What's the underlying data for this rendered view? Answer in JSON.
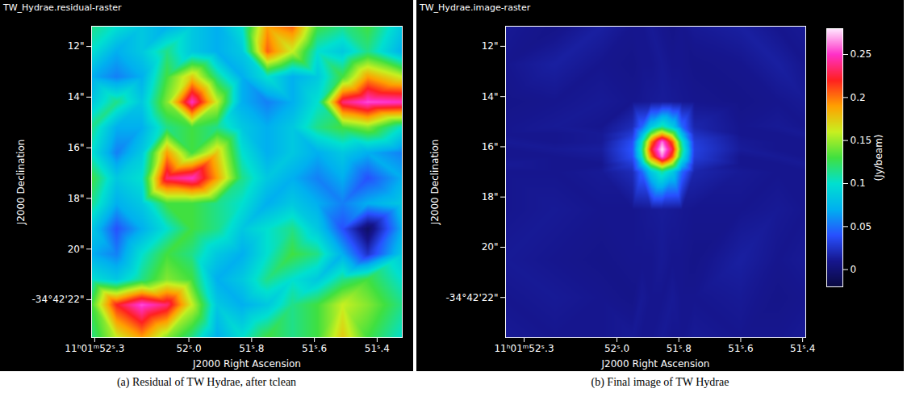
{
  "chart_data": [
    {
      "type": "heatmap",
      "title": "TW_Hydrae.residual-raster",
      "caption": "(a) Residual of TW Hydrae, after tclean",
      "x_label": "J2000 Right Ascension",
      "y_label": "J2000 Declination",
      "xlim": [
        52.31,
        51.32
      ],
      "ylim": [
        11.2,
        23.5
      ],
      "xticks": [
        {
          "value": 52.3,
          "label": "11ʰ01ᵐ52ˢ.3"
        },
        {
          "value": 52.0,
          "label": "52ˢ.0"
        },
        {
          "value": 51.8,
          "label": "51ˢ.8"
        },
        {
          "value": 51.6,
          "label": "51ˢ.6"
        },
        {
          "value": 51.4,
          "label": "51ˢ.4"
        }
      ],
      "yticks": [
        {
          "value": 12,
          "label": "12\""
        },
        {
          "value": 14,
          "label": "14\""
        },
        {
          "value": 16,
          "label": "16\""
        },
        {
          "value": 18,
          "label": "18\""
        },
        {
          "value": 20,
          "label": "20\""
        },
        {
          "value": 22,
          "label": "-34°42'22\""
        }
      ],
      "color_range": [
        0,
        1
      ],
      "cells": {
        "x": [
          52.31,
          52.23,
          52.15,
          52.07,
          51.99,
          51.91,
          51.83,
          51.75,
          51.67,
          51.59,
          51.51,
          51.43,
          51.32
        ],
        "y": [
          11.2,
          12.2,
          13.2,
          14.2,
          15.2,
          16.2,
          17.2,
          18.2,
          19.2,
          20.2,
          21.2,
          22.2,
          23.5
        ],
        "values": [
          [
            0.45,
            0.4,
            0.35,
            0.3,
            0.35,
            0.3,
            0.4,
            0.7,
            0.75,
            0.5,
            0.45,
            0.5,
            0.35
          ],
          [
            0.4,
            0.3,
            0.35,
            0.45,
            0.35,
            0.3,
            0.35,
            0.75,
            0.6,
            0.4,
            0.35,
            0.45,
            0.3
          ],
          [
            0.3,
            0.25,
            0.3,
            0.5,
            0.65,
            0.45,
            0.3,
            0.4,
            0.3,
            0.35,
            0.5,
            0.7,
            0.6
          ],
          [
            0.35,
            0.45,
            0.35,
            0.55,
            0.9,
            0.6,
            0.3,
            0.25,
            0.3,
            0.4,
            0.85,
            0.92,
            0.9
          ],
          [
            0.45,
            0.3,
            0.3,
            0.45,
            0.5,
            0.45,
            0.35,
            0.3,
            0.35,
            0.45,
            0.5,
            0.55,
            0.4
          ],
          [
            0.4,
            0.25,
            0.35,
            0.7,
            0.5,
            0.65,
            0.4,
            0.3,
            0.35,
            0.3,
            0.35,
            0.3,
            0.25
          ],
          [
            0.5,
            0.35,
            0.4,
            0.85,
            0.9,
            0.7,
            0.45,
            0.35,
            0.3,
            0.25,
            0.3,
            0.2,
            0.3
          ],
          [
            0.45,
            0.3,
            0.35,
            0.5,
            0.5,
            0.45,
            0.4,
            0.3,
            0.35,
            0.3,
            0.25,
            0.3,
            0.35
          ],
          [
            0.35,
            0.2,
            0.3,
            0.4,
            0.5,
            0.45,
            0.35,
            0.4,
            0.45,
            0.35,
            0.2,
            0.05,
            0.3
          ],
          [
            0.3,
            0.25,
            0.4,
            0.5,
            0.45,
            0.35,
            0.3,
            0.4,
            0.5,
            0.45,
            0.3,
            0.15,
            0.35
          ],
          [
            0.4,
            0.35,
            0.45,
            0.55,
            0.5,
            0.3,
            0.35,
            0.45,
            0.4,
            0.35,
            0.45,
            0.5,
            0.4
          ],
          [
            0.5,
            0.8,
            0.92,
            0.85,
            0.6,
            0.35,
            0.3,
            0.35,
            0.45,
            0.5,
            0.6,
            0.55,
            0.45
          ],
          [
            0.45,
            0.6,
            0.7,
            0.55,
            0.45,
            0.3,
            0.4,
            0.5,
            0.45,
            0.5,
            0.65,
            0.5,
            0.4
          ]
        ]
      }
    },
    {
      "type": "heatmap",
      "title": "TW_Hydrae.image-raster",
      "caption": "(b) Final image of TW Hydrae",
      "x_label": "J2000 Right Ascension",
      "y_label": "J2000 Declination",
      "xlim": [
        52.36,
        51.39
      ],
      "ylim": [
        11.2,
        23.6
      ],
      "xticks": [
        {
          "value": 52.3,
          "label": "11ʰ01ᵐ52ˢ.3"
        },
        {
          "value": 52.0,
          "label": "52ˢ.0"
        },
        {
          "value": 51.8,
          "label": "51ˢ.8"
        },
        {
          "value": 51.6,
          "label": "51ˢ.6"
        },
        {
          "value": 51.4,
          "label": "51ˢ.4"
        }
      ],
      "yticks": [
        {
          "value": 12,
          "label": "12\""
        },
        {
          "value": 14,
          "label": "14\""
        },
        {
          "value": 16,
          "label": "16\""
        },
        {
          "value": 18,
          "label": "18\""
        },
        {
          "value": 20,
          "label": "20\""
        },
        {
          "value": 22,
          "label": "-34°42'22\""
        }
      ],
      "color_range": [
        -0.02,
        0.28
      ],
      "color_ticks": [
        0,
        0.05,
        0.1,
        0.15,
        0.2,
        0.25
      ],
      "color_label": "(Jy/beam)",
      "cells": {
        "x": [
          52.36,
          52.2,
          52.05,
          51.95,
          51.92,
          51.89,
          51.854,
          51.82,
          51.79,
          51.75,
          51.6,
          51.48,
          51.39
        ],
        "y": [
          11.2,
          12.7,
          14.2,
          15.2,
          15.5,
          15.8,
          16.1,
          16.4,
          16.7,
          17.0,
          18.5,
          20.5,
          22.0,
          23.6
        ],
        "values": [
          [
            0.012,
            0.008,
            0.015,
            0.01,
            0.01,
            0.012,
            0.01,
            0.008,
            0.01,
            0.012,
            0.015,
            0.01,
            0.012
          ],
          [
            0.01,
            0.015,
            0.01,
            0.008,
            0.01,
            0.01,
            0.012,
            0.01,
            0.01,
            0.008,
            0.01,
            0.015,
            0.01
          ],
          [
            0.008,
            0.01,
            0.012,
            0.01,
            0.011,
            0.012,
            0.013,
            0.012,
            0.011,
            0.01,
            0.008,
            0.01,
            0.012
          ],
          [
            0.01,
            0.012,
            0.01,
            0.021,
            0.046,
            0.084,
            0.11,
            0.087,
            0.048,
            0.018,
            0.01,
            0.012,
            0.01
          ],
          [
            0.01,
            0.01,
            0.012,
            0.029,
            0.072,
            0.14,
            0.184,
            0.145,
            0.077,
            0.024,
            0.01,
            0.01,
            0.012
          ],
          [
            0.012,
            0.01,
            0.012,
            0.038,
            0.1,
            0.197,
            0.262,
            0.205,
            0.106,
            0.03,
            0.012,
            0.01,
            0.01
          ],
          [
            0.01,
            0.012,
            0.014,
            0.041,
            0.11,
            0.218,
            0.28,
            0.226,
            0.117,
            0.032,
            0.013,
            0.01,
            0.01
          ],
          [
            0.01,
            0.01,
            0.012,
            0.038,
            0.1,
            0.197,
            0.262,
            0.205,
            0.106,
            0.03,
            0.01,
            0.012,
            0.01
          ],
          [
            0.012,
            0.01,
            0.01,
            0.029,
            0.072,
            0.14,
            0.184,
            0.145,
            0.077,
            0.024,
            0.01,
            0.01,
            0.012
          ],
          [
            0.01,
            0.01,
            0.012,
            0.021,
            0.046,
            0.084,
            0.11,
            0.087,
            0.048,
            0.018,
            0.012,
            0.01,
            0.01
          ],
          [
            0.01,
            0.012,
            0.01,
            0.01,
            0.011,
            0.012,
            0.013,
            0.012,
            0.011,
            0.01,
            0.01,
            0.012,
            0.01
          ],
          [
            0.012,
            0.01,
            0.008,
            0.01,
            0.01,
            0.01,
            0.012,
            0.01,
            0.01,
            0.008,
            0.015,
            0.01,
            0.012
          ],
          [
            0.01,
            0.012,
            0.01,
            0.008,
            0.012,
            0.01,
            0.01,
            0.012,
            0.01,
            0.01,
            0.012,
            0.008,
            0.01
          ],
          [
            0.012,
            0.01,
            0.01,
            0.012,
            0.01,
            0.01,
            0.012,
            0.01,
            0.01,
            0.012,
            0.01,
            0.01,
            0.012
          ]
        ]
      }
    }
  ]
}
